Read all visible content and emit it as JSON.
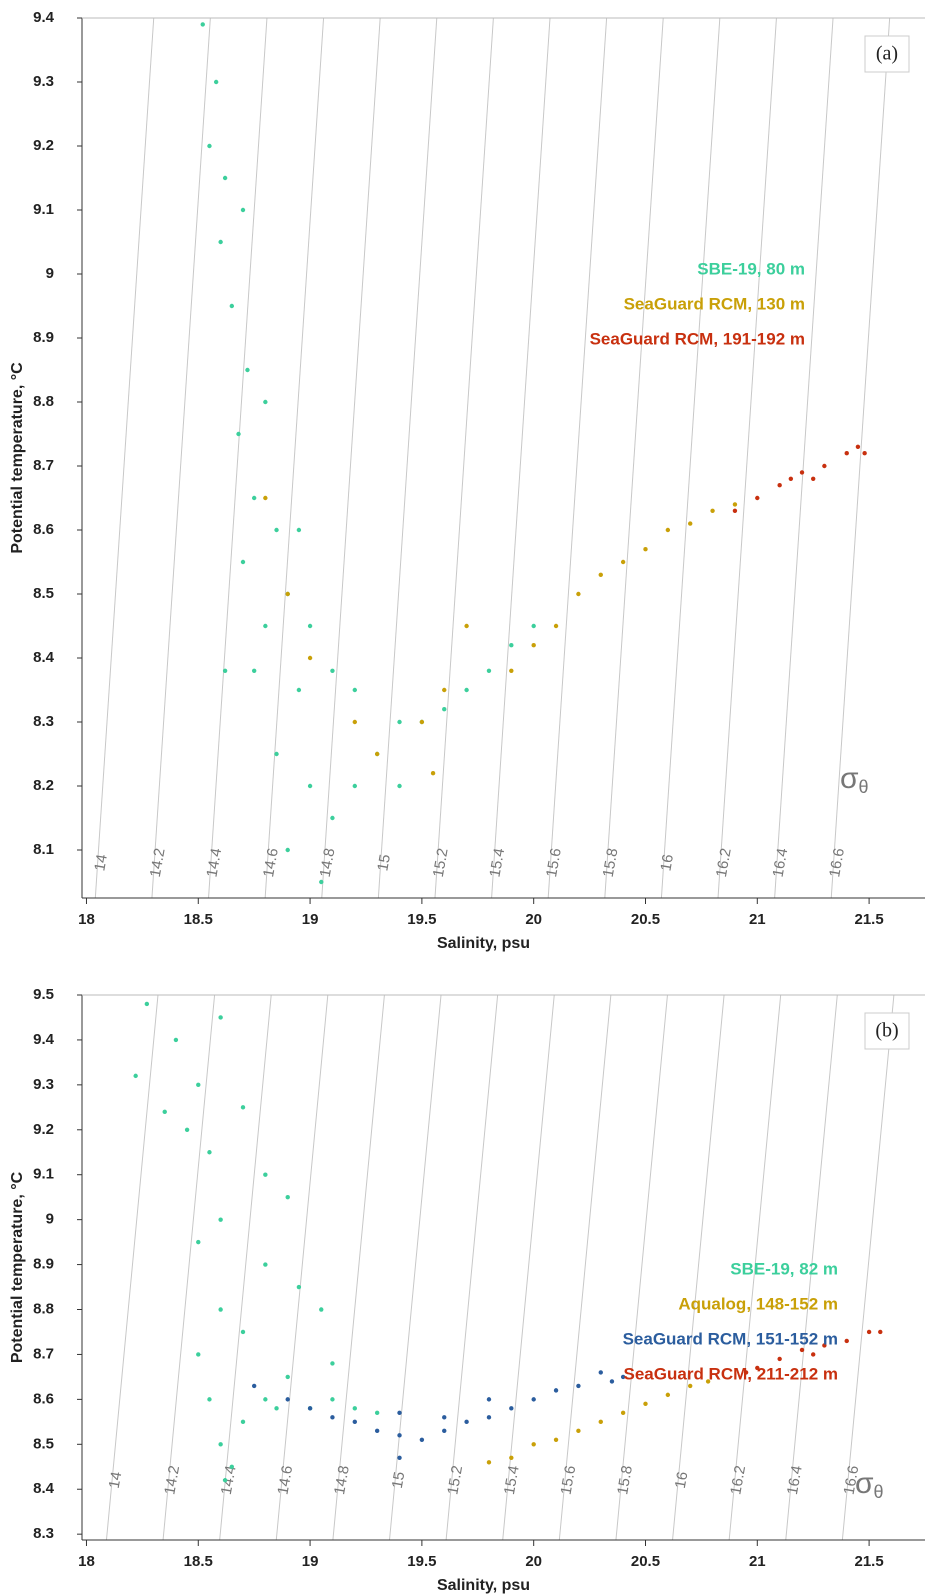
{
  "chart_data": [
    {
      "type": "scatter",
      "title": "(a)",
      "xlabel": "Salinity, psu",
      "ylabel": "Potential temperature, °C",
      "xlim": [
        17.98,
        21.75
      ],
      "ylim": [
        8.025,
        9.4
      ],
      "xticks": [
        18,
        18.5,
        19,
        19.5,
        20,
        20.5,
        21,
        21.5
      ],
      "yticks": [
        8.1,
        8.2,
        8.3,
        8.4,
        8.5,
        8.6,
        8.7,
        8.8,
        8.9,
        9,
        9.1,
        9.2,
        9.3,
        9.4
      ],
      "legend": "right",
      "isopycnals": {
        "symbol": "σ",
        "subscript": "θ",
        "values": [
          14,
          14.2,
          14.4,
          14.6,
          14.8,
          15,
          15.2,
          15.4,
          15.6,
          15.8,
          16,
          16.2,
          16.4,
          16.6
        ]
      },
      "series": [
        {
          "name": "SBE-19, 80 m",
          "color": "#3ccf9c",
          "x": [
            18.52,
            18.58,
            18.55,
            18.62,
            18.6,
            18.7,
            18.65,
            18.72,
            18.68,
            18.8,
            18.75,
            18.85,
            18.7,
            18.9,
            18.8,
            19.0,
            18.75,
            18.95,
            19.1,
            19.2,
            18.85,
            19.0,
            19.1,
            18.9,
            19.05,
            19.2,
            19.3,
            19.4,
            19.5,
            19.6,
            19.7,
            19.8,
            19.9,
            20.0,
            19.4,
            18.95,
            18.62
          ],
          "y": [
            9.39,
            9.3,
            9.2,
            9.15,
            9.05,
            9.1,
            8.95,
            8.85,
            8.75,
            8.8,
            8.65,
            8.6,
            8.55,
            8.5,
            8.45,
            8.45,
            8.38,
            8.35,
            8.38,
            8.35,
            8.25,
            8.2,
            8.15,
            8.1,
            8.05,
            8.2,
            8.25,
            8.3,
            8.3,
            8.32,
            8.35,
            8.38,
            8.42,
            8.45,
            8.2,
            8.6,
            8.38
          ]
        },
        {
          "name": "SeaGuard RCM, 130 m",
          "color": "#c9a008",
          "x": [
            18.8,
            18.9,
            19.0,
            19.2,
            19.3,
            19.5,
            19.6,
            19.7,
            19.55,
            19.9,
            20.0,
            20.1,
            20.2,
            20.3,
            20.4,
            20.5,
            20.6,
            20.7,
            20.8,
            20.9
          ],
          "y": [
            8.65,
            8.5,
            8.4,
            8.3,
            8.25,
            8.3,
            8.35,
            8.45,
            8.22,
            8.38,
            8.42,
            8.45,
            8.5,
            8.53,
            8.55,
            8.57,
            8.6,
            8.61,
            8.63,
            8.64
          ]
        },
        {
          "name": "SeaGuard RCM, 191-192 m",
          "color": "#c8300f",
          "x": [
            20.9,
            21.0,
            21.1,
            21.2,
            21.3,
            21.4,
            21.45,
            21.48,
            21.25,
            21.15
          ],
          "y": [
            8.63,
            8.65,
            8.67,
            8.69,
            8.7,
            8.72,
            8.73,
            8.72,
            8.68,
            8.68
          ]
        }
      ]
    },
    {
      "type": "scatter",
      "title": "(b)",
      "xlabel": "Salinity, psu",
      "ylabel": "Potential temperature, °C",
      "xlim": [
        17.98,
        21.75
      ],
      "ylim": [
        8.287,
        9.5
      ],
      "xticks": [
        18,
        18.5,
        19,
        19.5,
        20,
        20.5,
        21,
        21.5
      ],
      "yticks": [
        8.3,
        8.4,
        8.5,
        8.6,
        8.7,
        8.8,
        8.9,
        9,
        9.1,
        9.2,
        9.3,
        9.4,
        9.5
      ],
      "legend": "right",
      "isopycnals": {
        "symbol": "σ",
        "subscript": "θ",
        "values": [
          14,
          14.2,
          14.4,
          14.6,
          14.8,
          15,
          15.2,
          15.4,
          15.6,
          15.8,
          16,
          16.2,
          16.4,
          16.6
        ]
      },
      "series": [
        {
          "name": "SBE-19, 82 m",
          "color": "#3ccf9c",
          "x": [
            18.22,
            18.27,
            18.35,
            18.4,
            18.45,
            18.5,
            18.55,
            18.6,
            18.6,
            18.7,
            18.5,
            18.8,
            18.9,
            18.8,
            18.95,
            19.05,
            18.6,
            18.5,
            18.55,
            18.6,
            18.65,
            18.7,
            18.8,
            18.9,
            18.85,
            19.0,
            19.1,
            19.2,
            19.3,
            19.1,
            18.62,
            18.7
          ],
          "y": [
            9.32,
            9.48,
            9.24,
            9.4,
            9.2,
            9.3,
            9.15,
            9.45,
            9.0,
            9.25,
            8.95,
            9.1,
            9.05,
            8.9,
            8.85,
            8.8,
            8.8,
            8.7,
            8.6,
            8.5,
            8.45,
            8.55,
            8.6,
            8.65,
            8.58,
            8.58,
            8.6,
            8.58,
            8.57,
            8.68,
            8.42,
            8.75
          ]
        },
        {
          "name": "Aqualog, 148-152 m",
          "color": "#c9a008",
          "x": [
            19.8,
            19.9,
            20.0,
            20.1,
            20.2,
            20.3,
            20.4,
            20.5,
            20.6,
            20.7,
            20.78
          ],
          "y": [
            8.46,
            8.47,
            8.5,
            8.51,
            8.53,
            8.55,
            8.57,
            8.59,
            8.61,
            8.63,
            8.64
          ]
        },
        {
          "name": "SeaGuard RCM, 151-152 m",
          "color": "#2b5d9e",
          "x": [
            18.75,
            18.9,
            19.0,
            19.1,
            19.2,
            19.3,
            19.4,
            19.5,
            19.6,
            19.7,
            19.8,
            19.9,
            20.0,
            20.1,
            20.2,
            20.3,
            20.4,
            19.4,
            19.6,
            19.8,
            19.4,
            20.35
          ],
          "y": [
            8.63,
            8.6,
            8.58,
            8.56,
            8.55,
            8.53,
            8.52,
            8.51,
            8.53,
            8.55,
            8.56,
            8.58,
            8.6,
            8.62,
            8.63,
            8.66,
            8.65,
            8.57,
            8.56,
            8.6,
            8.47,
            8.64
          ]
        },
        {
          "name": "SeaGuard RCM, 211-212 m",
          "color": "#c8300f",
          "x": [
            20.95,
            21.0,
            21.1,
            21.2,
            21.3,
            21.4,
            21.5,
            21.55,
            21.25
          ],
          "y": [
            8.66,
            8.67,
            8.69,
            8.71,
            8.72,
            8.73,
            8.75,
            8.75,
            8.7
          ]
        }
      ]
    }
  ]
}
